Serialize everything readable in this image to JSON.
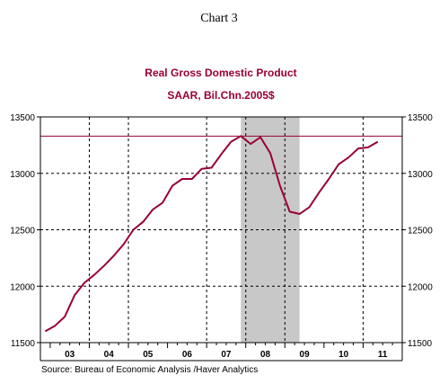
{
  "header": {
    "chart_label": "Chart 3"
  },
  "colors": {
    "series": "#990033",
    "shade": "#c8c8c8",
    "title": "#990033",
    "text": "#000000"
  },
  "chart_data": {
    "type": "line",
    "title": "Real Gross Domestic Product",
    "subtitle": "SAAR, Bil.Chn.2005$",
    "source": "Source:  Bureau of Economic Analysis /Haver Analytics",
    "xlim": [
      2002.75,
      2012.0
    ],
    "ylim": [
      11500,
      13500
    ],
    "yticks": [
      11500,
      12000,
      12500,
      13000,
      13500
    ],
    "ytick_labels": [
      "11500",
      "12000",
      "12500",
      "13000",
      "13500"
    ],
    "xticks": [
      2003,
      2004,
      2005,
      2006,
      2007,
      2008,
      2009,
      2010,
      2011
    ],
    "year_labels": [
      {
        "label": "03",
        "x": 2003.5
      },
      {
        "label": "04",
        "x": 2004.5
      },
      {
        "label": "05",
        "x": 2005.5
      },
      {
        "label": "06",
        "x": 2006.5
      },
      {
        "label": "07",
        "x": 2007.5
      },
      {
        "label": "08",
        "x": 2008.5
      },
      {
        "label": "09",
        "x": 2009.5
      },
      {
        "label": "10",
        "x": 2010.5
      },
      {
        "label": "11",
        "x": 2011.5
      }
    ],
    "grid": true,
    "reference_line": 13330,
    "recession_shade": [
      2007.875,
      2009.375
    ],
    "series": [
      {
        "x": [
          2002.875,
          2003.125,
          2003.375,
          2003.625,
          2003.875,
          2004.125,
          2004.375,
          2004.625,
          2004.875,
          2005.125,
          2005.375,
          2005.625,
          2005.875,
          2006.125,
          2006.375,
          2006.625,
          2006.875,
          2007.125,
          2007.375,
          2007.625,
          2007.875,
          2008.125,
          2008.375,
          2008.625,
          2008.875,
          2009.125,
          2009.375,
          2009.625,
          2009.875,
          2010.125,
          2010.375,
          2010.625,
          2010.875,
          2011.125,
          2011.375
        ],
        "values": [
          11600,
          11650,
          11730,
          11920,
          12030,
          12100,
          12180,
          12270,
          12370,
          12500,
          12570,
          12680,
          12740,
          12890,
          12950,
          12950,
          13040,
          13050,
          13170,
          13280,
          13330,
          13260,
          13320,
          13180,
          12890,
          12660,
          12640,
          12700,
          12830,
          12950,
          13080,
          13140,
          13220,
          13230,
          13280
        ]
      }
    ]
  }
}
